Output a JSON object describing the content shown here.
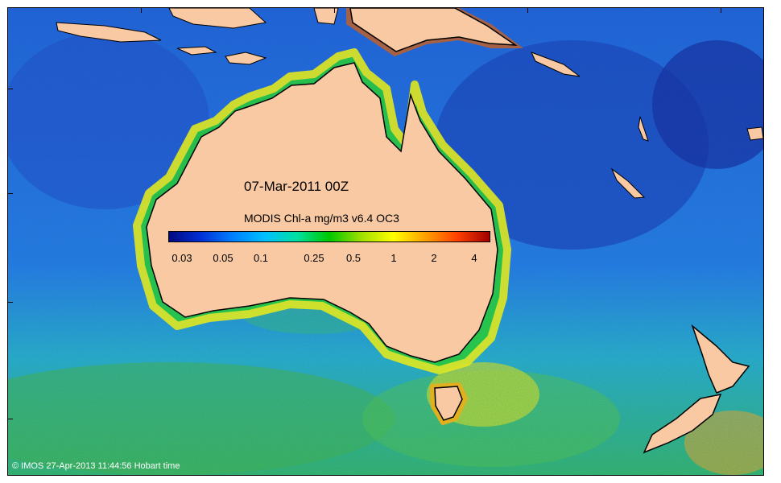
{
  "map": {
    "date_label": "07-Mar-2011 00Z",
    "colorbar": {
      "title": "MODIS Chl-a mg/m3 v6.4 OC3",
      "ticks": [
        "0.03",
        "0.05",
        "0.1",
        "0.25",
        "0.5",
        "1",
        "2",
        "4"
      ],
      "gradient_colors": [
        "#000a80",
        "#0030d8",
        "#0080ff",
        "#00c0ff",
        "#00e0a0",
        "#00c800",
        "#a0e000",
        "#ffff00",
        "#ffa000",
        "#ff4000",
        "#a00000"
      ]
    },
    "credit": "© IMOS 27-Apr-2013 11:44:56 Hobart time",
    "colors": {
      "land": "#f8c9a2",
      "deep_ocean": "#1848c0",
      "mid_ocean": "#1e88e8",
      "coastal_green": "#20c040",
      "coastal_yellow": "#d8f020",
      "coastal_red": "#d03010"
    }
  }
}
